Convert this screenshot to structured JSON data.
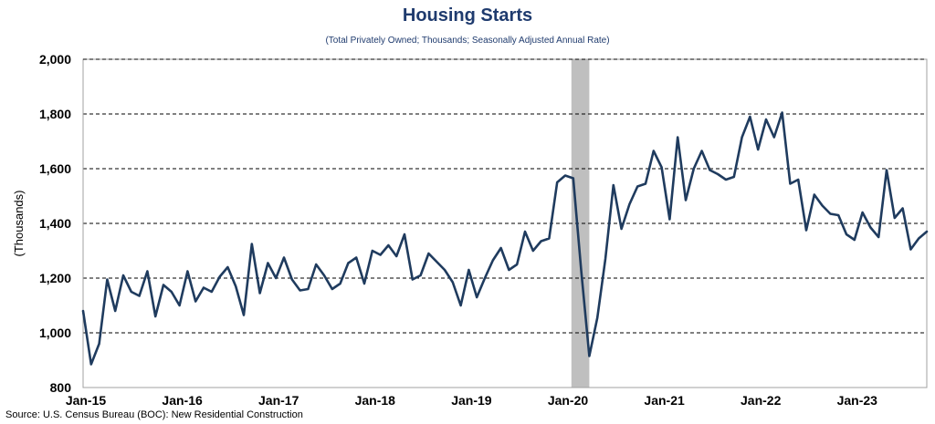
{
  "chart_data": {
    "type": "line",
    "title": "Housing Starts",
    "subtitle": "(Total Privately Owned; Thousands; Seasonally Adjusted Annual Rate)",
    "ylabel": "(Thousands)",
    "xlabel": "",
    "ylim": [
      800,
      2000
    ],
    "yticks": [
      800,
      1000,
      1200,
      1400,
      1600,
      1800,
      2000
    ],
    "ytick_labels": [
      "800",
      "1,000",
      "1,200",
      "1,400",
      "1,600",
      "1,800",
      "2,000"
    ],
    "xtick_labels": [
      "Jan-15",
      "Jan-16",
      "Jan-17",
      "Jan-18",
      "Jan-19",
      "Jan-20",
      "Jan-21",
      "Jan-22",
      "Jan-23"
    ],
    "xtick_index": [
      0,
      12,
      24,
      36,
      48,
      60,
      72,
      84,
      96
    ],
    "grid": "horizontal dashed",
    "recession_shading": {
      "start_index": 61,
      "end_index": 63,
      "color": "#bfbfbf"
    },
    "series": [
      {
        "name": "Housing Starts",
        "color": "#1f3b5e",
        "start": "Jan-15",
        "values": [
          1080,
          885,
          960,
          1195,
          1080,
          1210,
          1150,
          1135,
          1225,
          1060,
          1175,
          1150,
          1100,
          1225,
          1115,
          1165,
          1150,
          1205,
          1240,
          1170,
          1065,
          1325,
          1145,
          1255,
          1200,
          1275,
          1195,
          1155,
          1160,
          1250,
          1210,
          1160,
          1180,
          1255,
          1275,
          1180,
          1300,
          1285,
          1320,
          1280,
          1360,
          1195,
          1210,
          1290,
          1260,
          1230,
          1185,
          1100,
          1230,
          1130,
          1200,
          1265,
          1310,
          1230,
          1250,
          1370,
          1300,
          1335,
          1345,
          1550,
          1575,
          1565,
          1225,
          915,
          1055,
          1270,
          1540,
          1380,
          1470,
          1535,
          1545,
          1665,
          1605,
          1415,
          1715,
          1485,
          1600,
          1665,
          1595,
          1580,
          1560,
          1570,
          1715,
          1790,
          1670,
          1780,
          1715,
          1805,
          1545,
          1560,
          1375,
          1505,
          1465,
          1435,
          1430,
          1360,
          1340,
          1440,
          1385,
          1350,
          1595,
          1420,
          1455,
          1305,
          1345,
          1370
        ]
      }
    ]
  },
  "footer": {
    "source": "Source: U.S. Census Bureau (BOC): New Residential Construction"
  }
}
